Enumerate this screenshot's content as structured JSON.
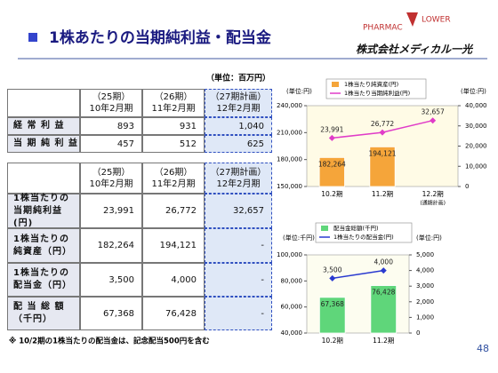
{
  "header": {
    "title": "1株あたりの当期純利益・配当金",
    "logo_left": "PHARMAC",
    "logo_right": "LOWER",
    "company": "株式会社メディカル一光"
  },
  "unit": "（単位：百万円）",
  "table1": {
    "header": [
      "（25期）\n10年2月期",
      "（26期）\n11年2月期",
      "（27期計画）\n12年2月期"
    ],
    "rows": [
      [
        "経 常 利 益",
        "893",
        "931",
        "1,040"
      ],
      [
        "当 期 純 利 益",
        "457",
        "512",
        "625"
      ]
    ]
  },
  "table2": {
    "header": [
      "（25期）\n10年2月期",
      "（26期）\n11年2月期",
      "（27期計画）\n12年2月期"
    ],
    "rows": [
      [
        "1株当たりの\n当期純利益(円)",
        "23,991",
        "26,772",
        "32,657"
      ],
      [
        "1株当たりの\n純資産（円）",
        "182,264",
        "194,121",
        "-"
      ],
      [
        "1株当たりの\n配当金（円）",
        "3,500",
        "4,000",
        "-"
      ],
      [
        "配 当 総 額\n（千円）",
        "67,368",
        "76,428",
        "-"
      ]
    ]
  },
  "note": "※ 10/2期の1株当たりの配当金は、記念配当500円を含む",
  "page_number": "48",
  "chart_data": [
    {
      "type": "bar",
      "ylabel": "(単位:円)",
      "y2label": "(単位:円)",
      "categories": [
        "10.2期",
        "11.2期",
        "12.2期"
      ],
      "annotations": [
        "(通期計画)"
      ],
      "ylim": [
        150000,
        240000
      ],
      "yticks": [
        {
          "value": 150000,
          "label": "150,000"
        },
        {
          "value": 180000,
          "label": "180,000"
        },
        {
          "value": 210000,
          "label": "210,000"
        },
        {
          "value": 240000,
          "label": "240,000"
        }
      ],
      "y2lim": [
        0,
        40000
      ],
      "y2ticks": [
        0,
        {
          "value": 10000,
          "label": "10,000"
        },
        {
          "value": 20000,
          "label": "20,000"
        },
        {
          "value": 30000,
          "label": "30,000"
        },
        {
          "value": 40000,
          "label": "40,000"
        }
      ],
      "series": [
        {
          "name": "1株当たり純資産(円)",
          "type": "bar",
          "color": "#f5a53a",
          "values": [
            182264,
            194121,
            null
          ],
          "value_labels": [
            "182,264",
            "194,121",
            null
          ]
        },
        {
          "name": "1株当たり当期純利益(円)",
          "type": "line",
          "axis": "y2",
          "color": "#e03cc8",
          "values": [
            23991,
            26772,
            32657
          ],
          "value_labels": [
            "23,991",
            "26,772",
            "32,657"
          ]
        }
      ]
    },
    {
      "type": "bar",
      "ylabel": "(単位:千円)",
      "y2label": "(単位:円)",
      "categories": [
        "10.2期",
        "11.2期"
      ],
      "ylim": [
        40000,
        100000
      ],
      "yticks": [
        {
          "value": 40000,
          "label": "40,000"
        },
        {
          "value": 60000,
          "label": "60,000"
        },
        {
          "value": 80000,
          "label": "80,000"
        },
        {
          "value": 100000,
          "label": "100,000"
        }
      ],
      "y2lim": [
        0,
        5000
      ],
      "y2ticks": [
        0,
        {
          "value": 1000,
          "label": "1,000"
        },
        {
          "value": 2000,
          "label": "2,000"
        },
        {
          "value": 3000,
          "label": "3,000"
        },
        {
          "value": 4000,
          "label": "4,000"
        },
        {
          "value": 5000,
          "label": "5,000"
        }
      ],
      "series": [
        {
          "name": "配当金総額(千円)",
          "type": "bar",
          "color": "#5fd67a",
          "values": [
            67368,
            76428
          ],
          "value_labels": [
            "67,368",
            "76,428"
          ]
        },
        {
          "name": "1株当たりの配当金(円)",
          "type": "line",
          "axis": "y2",
          "color": "#2a3ad0",
          "values": [
            3500,
            4000
          ],
          "value_labels": [
            "3,500",
            "4,000"
          ]
        }
      ]
    }
  ]
}
